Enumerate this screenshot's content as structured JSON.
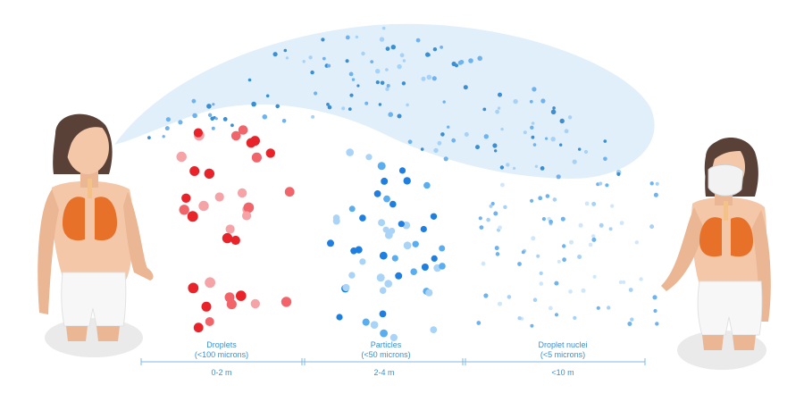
{
  "categories": [
    {
      "name": "Droplets",
      "size": "(<100 microns)",
      "distance": "0-2 m",
      "dot_colors": [
        "#e8232a",
        "#f0646a",
        "#f5a3a6"
      ]
    },
    {
      "name": "Particles",
      "size": "(<50 microns)",
      "distance": "2-4 m",
      "dot_colors": [
        "#1e7fe0",
        "#5aaef0",
        "#a9d3f7"
      ]
    },
    {
      "name": "Droplet nuclei",
      "size": "(<5 microns)",
      "distance": "<10 m",
      "dot_colors": [
        "#6fb3ee",
        "#a7d2f5",
        "#cfe6fb"
      ]
    }
  ],
  "colors": {
    "accent": "#3b8fd1",
    "cloud": "#dcecfa",
    "skin": "#f3c7a8",
    "hair": "#5a4138",
    "lungs": "#e8712a",
    "shorts": "#f4f4f4"
  }
}
